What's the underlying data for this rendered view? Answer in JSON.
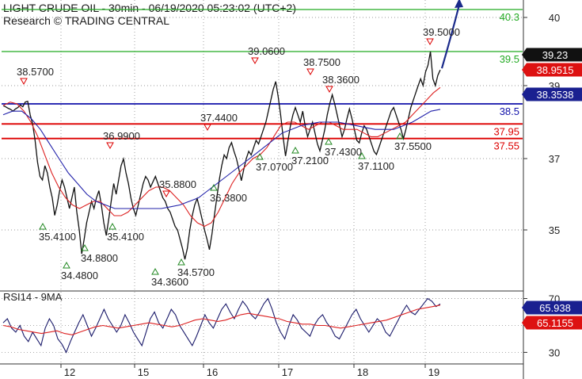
{
  "header": {
    "line1": "LIGHT CRUDE OIL - 30min - 06/19/2020 05:23:02 (UTC+2)",
    "line2": "Research © TRADING CENTRAL"
  },
  "rsi_title": "RSI14 - 9MA",
  "colors": {
    "price": "#111111",
    "ma_fast": "#dd2222",
    "ma_slow": "#2222aa",
    "resistance": "#22aa22",
    "support": "#dd0000",
    "pivot": "#1111aa",
    "arrow": "#1a2a8a",
    "grid": "#7a7a7a",
    "badge_price": "#111111",
    "badge_red": "#dd1111",
    "badge_blue": "#1a2090"
  },
  "chart_data": [
    {
      "type": "line",
      "panel": "price",
      "ylim": [
        33.8,
        40.6
      ],
      "y_ticks": [
        35,
        37,
        39,
        40
      ],
      "y_tick_labels": [
        "35",
        "37",
        "39",
        "40"
      ],
      "x_labels": [
        "12",
        "15",
        "16",
        "17",
        "18",
        "19"
      ],
      "grid": "dotted",
      "levels": [
        {
          "label": "40.3",
          "value": 40.3,
          "role": "resistance"
        },
        {
          "label": "39.5",
          "value": 39.5,
          "role": "resistance"
        },
        {
          "label": "38.5",
          "value": 38.5,
          "role": "pivot"
        },
        {
          "label": "37.95",
          "value": 37.95,
          "role": "support"
        },
        {
          "label": "37.55",
          "value": 37.55,
          "role": "support"
        }
      ],
      "price_badges": [
        {
          "label": "39.23",
          "value": 39.23,
          "role": "price"
        },
        {
          "label": "38.9515",
          "value": 38.9515,
          "role": "ma_fast"
        },
        {
          "label": "38.3538",
          "value": 38.3538,
          "role": "ma_slow"
        }
      ],
      "annotations": [
        {
          "label": "38.5700",
          "value": 38.57,
          "kind": "high"
        },
        {
          "label": "35.4100",
          "value": 35.41,
          "kind": "low"
        },
        {
          "label": "34.4800",
          "value": 34.48,
          "kind": "low"
        },
        {
          "label": "34.8800",
          "value": 34.88,
          "kind": "low"
        },
        {
          "label": "36.9900",
          "value": 36.99,
          "kind": "high"
        },
        {
          "label": "35.4100",
          "value": 35.41,
          "kind": "low"
        },
        {
          "label": "34.3600",
          "value": 34.36,
          "kind": "low"
        },
        {
          "label": "35.8800",
          "value": 35.88,
          "kind": "high"
        },
        {
          "label": "34.5700",
          "value": 34.57,
          "kind": "low"
        },
        {
          "label": "37.4400",
          "value": 37.44,
          "kind": "high"
        },
        {
          "label": "36.3800",
          "value": 36.38,
          "kind": "low"
        },
        {
          "label": "39.0600",
          "value": 39.06,
          "kind": "high"
        },
        {
          "label": "37.0700",
          "value": 37.07,
          "kind": "low"
        },
        {
          "label": "37.2100",
          "value": 37.21,
          "kind": "low"
        },
        {
          "label": "38.7500",
          "value": 38.75,
          "kind": "high"
        },
        {
          "label": "38.3600",
          "value": 38.36,
          "kind": "high"
        },
        {
          "label": "37.4300",
          "value": 37.43,
          "kind": "low"
        },
        {
          "label": "37.1100",
          "value": 37.11,
          "kind": "low"
        },
        {
          "label": "37.5500",
          "value": 37.55,
          "kind": "low"
        },
        {
          "label": "39.5000",
          "value": 39.5,
          "kind": "high"
        }
      ],
      "series": [
        {
          "role": "price",
          "values": [
            38.45,
            38.42,
            38.38,
            38.35,
            38.3,
            38.36,
            38.4,
            38.47,
            38.42,
            38.55,
            38.57,
            38.2,
            37.95,
            37.5,
            36.9,
            36.5,
            36.4,
            36.8,
            36.6,
            36.2,
            35.9,
            35.41,
            35.7,
            36.1,
            36.4,
            36.2,
            35.9,
            35.6,
            35.9,
            36.2,
            35.5,
            35.0,
            34.48,
            34.8,
            35.2,
            35.5,
            35.8,
            35.6,
            35.9,
            36.1,
            35.7,
            35.2,
            34.88,
            35.3,
            35.8,
            36.3,
            36.0,
            36.4,
            36.8,
            36.99,
            36.6,
            36.3,
            35.9,
            35.6,
            35.41,
            35.7,
            36.0,
            36.3,
            36.5,
            36.4,
            36.2,
            36.35,
            36.5,
            36.3,
            36.1,
            35.9,
            35.8,
            35.6,
            35.5,
            35.3,
            35.1,
            35.0,
            34.8,
            34.6,
            34.36,
            34.6,
            35.0,
            35.4,
            35.7,
            35.88,
            35.6,
            35.3,
            35.0,
            34.8,
            34.57,
            34.9,
            35.4,
            35.9,
            36.4,
            36.8,
            37.1,
            37.0,
            37.3,
            37.44,
            37.2,
            37.0,
            36.7,
            36.38,
            36.7,
            37.0,
            37.2,
            37.1,
            37.3,
            37.5,
            37.4,
            37.6,
            37.8,
            38.0,
            38.3,
            38.6,
            38.9,
            39.06,
            38.7,
            38.2,
            37.6,
            37.07,
            37.5,
            37.9,
            38.2,
            38.4,
            38.2,
            38.0,
            38.3,
            37.9,
            37.6,
            37.8,
            38.0,
            37.7,
            37.4,
            37.21,
            37.5,
            37.8,
            38.2,
            38.5,
            38.75,
            38.5,
            38.2,
            37.9,
            37.6,
            37.8,
            38.1,
            38.36,
            38.1,
            37.8,
            37.5,
            37.43,
            37.7,
            37.9,
            37.8,
            37.6,
            37.4,
            37.2,
            37.11,
            37.3,
            37.5,
            37.7,
            37.9,
            38.1,
            38.3,
            38.4,
            38.2,
            38.0,
            37.8,
            37.55,
            37.8,
            38.1,
            38.4,
            38.6,
            38.8,
            39.0,
            39.1,
            39.0,
            39.2,
            39.3,
            39.5,
            39.1,
            39.0,
            39.15,
            39.23
          ]
        },
        {
          "role": "ma_fast",
          "values": [
            38.45,
            38.55,
            38.5,
            38.3,
            38.0,
            37.6,
            37.1,
            36.6,
            36.2,
            35.9,
            35.7,
            35.6,
            35.7,
            35.8,
            35.8,
            35.6,
            35.4,
            35.4,
            35.5,
            35.7,
            35.9,
            36.1,
            36.2,
            36.2,
            36.1,
            35.9,
            35.7,
            35.4,
            35.2,
            35.1,
            35.2,
            35.5,
            35.9,
            36.3,
            36.6,
            36.8,
            37.0,
            37.1,
            37.3,
            37.6,
            37.9,
            38.0,
            38.0,
            37.9,
            37.8,
            37.9,
            38.0,
            38.0,
            37.9,
            37.8,
            37.8,
            37.8,
            37.7,
            37.6,
            37.6,
            37.7,
            37.8,
            37.9,
            38.0,
            38.2,
            38.4,
            38.6,
            38.8,
            38.95
          ]
        },
        {
          "role": "ma_slow",
          "values": [
            38.2,
            38.3,
            38.3,
            38.1,
            37.8,
            37.4,
            37.0,
            36.6,
            36.3,
            36.0,
            35.8,
            35.7,
            35.6,
            35.6,
            35.6,
            35.6,
            35.6,
            35.6,
            35.65,
            35.7,
            35.8,
            35.9,
            36.1,
            36.3,
            36.5,
            36.7,
            36.9,
            37.1,
            37.3,
            37.5,
            37.7,
            37.8,
            37.9,
            37.95,
            38.0,
            38.0,
            38.0,
            37.95,
            37.9,
            37.85,
            37.8,
            37.8,
            37.8,
            37.9,
            38.0,
            38.15,
            38.3,
            38.35
          ]
        }
      ]
    },
    {
      "type": "line",
      "panel": "rsi",
      "title": "RSI14 - 9MA",
      "ylim": [
        22,
        75
      ],
      "y_ticks": [
        30,
        50,
        70
      ],
      "y_tick_labels": [
        "30",
        "50",
        "70"
      ],
      "value_badges": [
        {
          "label": "65.938",
          "value": 65.938,
          "role": "rsi"
        },
        {
          "label": "65.1155",
          "value": 65.1155,
          "role": "ma_fast"
        }
      ],
      "series": [
        {
          "role": "rsi",
          "values": [
            52,
            55,
            48,
            45,
            50,
            42,
            38,
            45,
            40,
            35,
            48,
            55,
            50,
            40,
            36,
            30,
            38,
            45,
            52,
            58,
            50,
            42,
            48,
            55,
            62,
            55,
            50,
            45,
            50,
            58,
            52,
            45,
            40,
            35,
            45,
            55,
            60,
            52,
            48,
            55,
            62,
            58,
            50,
            45,
            40,
            35,
            42,
            50,
            58,
            52,
            48,
            55,
            62,
            66,
            60,
            55,
            62,
            68,
            64,
            58,
            55,
            60,
            66,
            70,
            62,
            52,
            45,
            40,
            50,
            58,
            54,
            48,
            45,
            42,
            50,
            55,
            58,
            52,
            48,
            42,
            40,
            46,
            52,
            58,
            62,
            55,
            50,
            45,
            50,
            55,
            52,
            45,
            42,
            48,
            54,
            60,
            65,
            60,
            58,
            62,
            66,
            70,
            68,
            64,
            65.938
          ]
        },
        {
          "role": "ma_fast",
          "values": [
            50,
            49,
            47,
            46,
            45,
            44,
            45,
            46,
            44,
            43,
            45,
            47,
            49,
            50,
            49,
            48,
            49,
            50,
            51,
            52,
            51,
            50,
            49,
            50,
            52,
            54,
            55,
            54,
            53,
            54,
            56,
            58,
            59,
            58,
            57,
            56,
            55,
            53,
            52,
            51,
            51,
            50,
            50,
            49,
            48,
            49,
            50,
            51,
            52,
            53,
            54,
            56,
            58,
            60,
            62,
            63,
            64,
            65.1155
          ]
        }
      ]
    }
  ]
}
